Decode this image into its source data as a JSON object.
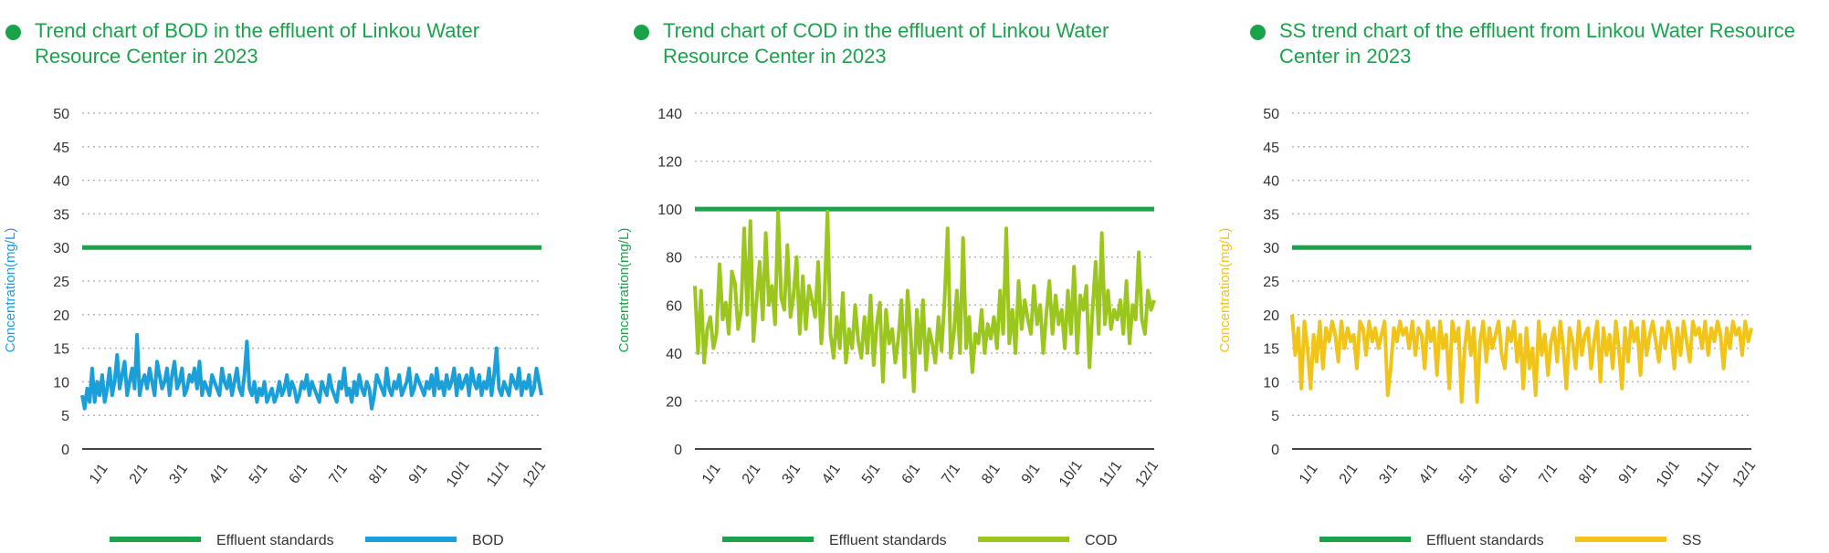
{
  "colors": {
    "title": "#1aa34a",
    "standard": "#1aa34a",
    "grid": "#b5b5b5",
    "axis": "#444444"
  },
  "chart_data": [
    {
      "type": "line",
      "title": "Trend chart of BOD in the effluent of Linkou Water Resource Center in 2023",
      "ylabel": "Concentration(mg/L)",
      "ylabel_color": "#1a9fd9",
      "ylim": [
        0,
        50
      ],
      "yticks": [
        0,
        5,
        10,
        15,
        20,
        25,
        30,
        35,
        40,
        45,
        50
      ],
      "xticks": [
        "1/1",
        "2/1",
        "3/1",
        "4/1",
        "5/1",
        "6/1",
        "7/1",
        "8/1",
        "9/1",
        "10/1",
        "11/1",
        "12/1"
      ],
      "grid": true,
      "legend_position": "bottom",
      "series": [
        {
          "name": "Effluent standards",
          "color": "#1aa34a",
          "constant": 30
        },
        {
          "name": "BOD",
          "color": "#1a9fd9",
          "values": [
            8,
            6,
            9,
            7,
            12,
            7,
            10,
            8,
            11,
            7,
            9,
            12,
            8,
            10,
            14,
            9,
            11,
            13,
            8,
            10,
            12,
            9,
            17,
            8,
            10,
            11,
            9,
            12,
            10,
            8,
            13,
            11,
            9,
            10,
            12,
            8,
            11,
            13,
            9,
            10,
            12,
            8,
            9,
            11,
            10,
            12,
            9,
            13,
            8,
            10,
            9,
            8,
            11,
            10,
            9,
            8,
            12,
            10,
            9,
            11,
            8,
            10,
            12,
            9,
            8,
            11,
            16,
            9,
            8,
            10,
            7,
            9,
            8,
            10,
            7,
            8,
            9,
            7,
            8,
            10,
            8,
            9,
            11,
            8,
            10,
            9,
            7,
            8,
            10,
            9,
            11,
            8,
            10,
            9,
            8,
            7,
            10,
            9,
            8,
            11,
            9,
            8,
            7,
            10,
            9,
            12,
            8,
            9,
            7,
            10,
            8,
            11,
            9,
            8,
            10,
            9,
            6,
            8,
            11,
            10,
            9,
            8,
            12,
            9,
            8,
            10,
            9,
            11,
            8,
            9,
            10,
            12,
            8,
            9,
            11,
            10,
            9,
            8,
            10,
            9,
            11,
            8,
            12,
            9,
            10,
            8,
            11,
            9,
            10,
            12,
            8,
            11,
            9,
            10,
            11,
            8,
            12,
            10,
            9,
            11,
            8,
            10,
            9,
            12,
            8,
            11,
            15,
            9,
            8,
            10,
            9,
            8,
            11,
            10,
            9,
            12,
            8,
            10,
            9,
            11,
            8,
            9,
            12,
            10,
            8
          ]
        }
      ]
    },
    {
      "type": "line",
      "title": "Trend chart of COD in the effluent of Linkou Water Resource Center in 2023",
      "ylabel": "Concentration(mg/L)",
      "ylabel_color": "#1aa34a",
      "ylim": [
        0,
        140
      ],
      "yticks": [
        0,
        20,
        40,
        60,
        80,
        100,
        120,
        140
      ],
      "xticks": [
        "1/1",
        "2/1",
        "3/1",
        "4/1",
        "5/1",
        "6/1",
        "7/1",
        "8/1",
        "9/1",
        "10/1",
        "11/1",
        "12/1"
      ],
      "grid": true,
      "legend_position": "bottom",
      "series": [
        {
          "name": "Effluent standards",
          "color": "#1aa34a",
          "constant": 100
        },
        {
          "name": "COD",
          "color": "#9bc61e",
          "values": [
            68,
            40,
            66,
            36,
            50,
            55,
            42,
            48,
            77,
            54,
            61,
            48,
            74,
            69,
            50,
            58,
            92,
            56,
            95,
            45,
            62,
            78,
            54,
            90,
            60,
            68,
            52,
            99,
            63,
            58,
            85,
            55,
            64,
            80,
            48,
            72,
            50,
            68,
            62,
            55,
            78,
            44,
            62,
            99,
            48,
            38,
            55,
            42,
            65,
            36,
            50,
            42,
            60,
            45,
            38,
            55,
            40,
            64,
            35,
            52,
            61,
            28,
            58,
            44,
            50,
            36,
            46,
            62,
            30,
            66,
            48,
            24,
            58,
            40,
            62,
            33,
            50,
            44,
            36,
            55,
            41,
            62,
            92,
            38,
            48,
            66,
            40,
            88,
            42,
            55,
            32,
            48,
            44,
            58,
            40,
            52,
            46,
            55,
            42,
            66,
            48,
            92,
            44,
            58,
            40,
            70,
            50,
            62,
            54,
            48,
            68,
            52,
            60,
            40,
            56,
            70,
            48,
            64,
            52,
            58,
            42,
            66,
            48,
            76,
            40,
            64,
            58,
            68,
            34,
            58,
            78,
            48,
            90,
            52,
            66,
            50,
            58,
            54,
            62,
            48,
            70,
            44,
            60,
            54,
            82,
            54,
            48,
            66,
            58,
            62
          ]
        }
      ]
    },
    {
      "type": "line",
      "title": "SS trend chart of the effluent from Linkou Water Resource Center in 2023",
      "ylabel": "Concentration(mg/L)",
      "ylabel_color": "#f0c419",
      "ylim": [
        0,
        50
      ],
      "yticks": [
        0,
        5,
        10,
        15,
        20,
        25,
        30,
        35,
        40,
        45,
        50
      ],
      "xticks": [
        "1/1",
        "2/1",
        "3/1",
        "4/1",
        "5/1",
        "6/1",
        "7/1",
        "8/1",
        "9/1",
        "10/1",
        "11/1",
        "12/1"
      ],
      "grid": true,
      "legend_position": "bottom",
      "series": [
        {
          "name": "Effluent standards",
          "color": "#1aa34a",
          "constant": 30
        },
        {
          "name": "SS",
          "color": "#f0c419",
          "values": [
            20,
            14,
            18,
            9,
            19,
            15,
            9,
            17,
            13,
            19,
            12,
            18,
            16,
            19,
            17,
            13,
            19,
            15,
            18,
            16,
            17,
            12,
            19,
            18,
            14,
            19,
            16,
            18,
            15,
            17,
            19,
            8,
            12,
            18,
            16,
            19,
            17,
            18,
            15,
            19,
            14,
            18,
            17,
            12,
            19,
            16,
            18,
            11,
            19,
            15,
            17,
            9,
            19,
            16,
            18,
            7,
            15,
            19,
            14,
            18,
            7,
            16,
            19,
            13,
            18,
            15,
            17,
            19,
            14,
            12,
            18,
            16,
            19,
            13,
            17,
            9,
            18,
            12,
            15,
            8,
            19,
            14,
            17,
            11,
            16,
            18,
            13,
            19,
            15,
            9,
            18,
            16,
            12,
            19,
            14,
            17,
            18,
            12,
            16,
            19,
            10,
            18,
            14,
            17,
            12,
            19,
            15,
            9,
            18,
            13,
            19,
            16,
            18,
            11,
            19,
            14,
            17,
            19,
            16,
            13,
            18,
            15,
            19,
            17,
            12,
            18,
            14,
            19,
            16,
            13,
            19,
            17,
            18,
            15,
            19,
            14,
            18,
            16,
            19,
            17,
            12,
            18,
            15,
            19,
            17,
            18,
            14,
            19,
            16,
            18
          ]
        }
      ]
    }
  ]
}
